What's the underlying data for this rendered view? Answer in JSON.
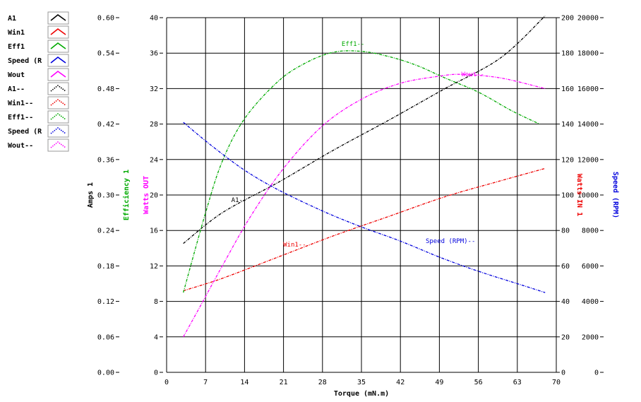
{
  "chart_data": {
    "type": "line",
    "xlabel": "Torque (mN.m)",
    "x_ticks": [
      "0",
      "7",
      "14",
      "21",
      "28",
      "35",
      "42",
      "49",
      "56",
      "63",
      "70"
    ],
    "xlim": [
      0,
      70
    ],
    "axes": [
      {
        "id": "amps",
        "label": "Amps 1",
        "color": "#000000",
        "ticks": [
          "0.00",
          "0.06",
          "0.12",
          "0.18",
          "0.24",
          "0.30",
          "0.36",
          "0.42",
          "0.48",
          "0.54",
          "0.60"
        ],
        "ylim": [
          0,
          0.6
        ]
      },
      {
        "id": "watts",
        "label": "Efficiency 1",
        "color": "#00aa00",
        "ticks": [
          "0",
          "4",
          "8",
          "12",
          "16",
          "20",
          "24",
          "28",
          "32",
          "36",
          "40"
        ],
        "ylim": [
          0,
          40
        ]
      },
      {
        "id": "wout",
        "label": "Watts OUT",
        "color": "#ff00ff",
        "ylim": [
          0,
          40
        ]
      },
      {
        "id": "win",
        "label": "Watts IN 1",
        "color": "#ee0000",
        "ticks": [
          "0",
          "20",
          "40",
          "60",
          "80",
          "100",
          "120",
          "140",
          "160",
          "180",
          "200"
        ],
        "ylim": [
          0,
          200
        ]
      },
      {
        "id": "speed",
        "label": "Speed (RPM)",
        "color": "#0000dd",
        "ticks": [
          "0",
          "2000",
          "4000",
          "6000",
          "8000",
          "10000",
          "12000",
          "14000",
          "16000",
          "18000",
          "20000"
        ],
        "ylim": [
          0,
          20000
        ]
      }
    ],
    "legend": [
      {
        "label": "A1",
        "color": "#000000",
        "style": "solid"
      },
      {
        "label": "Win1",
        "color": "#ee0000",
        "style": "solid"
      },
      {
        "label": "Eff1",
        "color": "#00aa00",
        "style": "solid"
      },
      {
        "label": "Speed (R",
        "color": "#0000dd",
        "style": "solid"
      },
      {
        "label": "Wout",
        "color": "#ff00ff",
        "style": "solid"
      },
      {
        "label": "A1--",
        "color": "#000000",
        "style": "dotted"
      },
      {
        "label": "Win1--",
        "color": "#ee0000",
        "style": "dotted"
      },
      {
        "label": "Eff1--",
        "color": "#00aa00",
        "style": "dotted"
      },
      {
        "label": "Speed (R",
        "color": "#0000dd",
        "style": "dotted"
      },
      {
        "label": "Wout--",
        "color": "#ff00ff",
        "style": "dotted"
      }
    ],
    "series": [
      {
        "name": "A1--",
        "axis": "amps",
        "color": "#000000",
        "x": [
          3,
          10,
          20,
          30,
          40,
          50,
          60,
          68
        ],
        "y": [
          0.218,
          0.27,
          0.321,
          0.376,
          0.427,
          0.48,
          0.532,
          0.603
        ]
      },
      {
        "name": "Win1--",
        "axis": "win",
        "color": "#ee0000",
        "x": [
          3,
          10,
          20,
          30,
          40,
          50,
          60,
          68
        ],
        "y": [
          46,
          53,
          65,
          77,
          88,
          99,
          108,
          115
        ]
      },
      {
        "name": "Eff1--",
        "axis": "watts",
        "color": "#00aa00",
        "x": [
          3,
          7,
          10,
          14,
          20,
          25,
          30,
          35,
          40,
          45,
          50,
          56,
          62,
          67
        ],
        "y": [
          9,
          18,
          23.8,
          28.6,
          32.8,
          34.9,
          36.1,
          36.2,
          35.6,
          34.6,
          33.2,
          31.6,
          29.5,
          28
        ]
      },
      {
        "name": "Speed (RPM)--",
        "axis": "speed",
        "color": "#0000dd",
        "x": [
          3,
          8,
          14,
          20,
          28,
          35,
          42,
          49,
          56,
          63,
          68
        ],
        "y": [
          14100,
          12800,
          11400,
          10300,
          9100,
          8200,
          7400,
          6500,
          5700,
          5000,
          4500
        ]
      },
      {
        "name": "Wout--",
        "axis": "wout",
        "color": "#ff00ff",
        "x": [
          3,
          6,
          10,
          15,
          21,
          28,
          35,
          42,
          49,
          53,
          60,
          68
        ],
        "y": [
          4,
          7.4,
          12,
          17.5,
          23,
          27.8,
          30.8,
          32.6,
          33.4,
          33.6,
          33.2,
          32
        ]
      }
    ],
    "annotations": [
      {
        "text": "Eff1--",
        "color": "#00aa00",
        "axis": "watts",
        "x": 33.5,
        "y": 36.8
      },
      {
        "text": "Wout--",
        "color": "#ff00ff",
        "axis": "wout",
        "x": 55,
        "y": 33.4
      },
      {
        "text": "A1--",
        "color": "#000000",
        "axis": "amps",
        "x": 13,
        "y": 0.288
      },
      {
        "text": "Win1--",
        "color": "#ee0000",
        "axis": "win",
        "x": 23,
        "y": 71
      },
      {
        "text": "Speed (RPM)--",
        "color": "#0000dd",
        "axis": "speed",
        "x": 51,
        "y": 7300
      }
    ],
    "grid": true
  }
}
